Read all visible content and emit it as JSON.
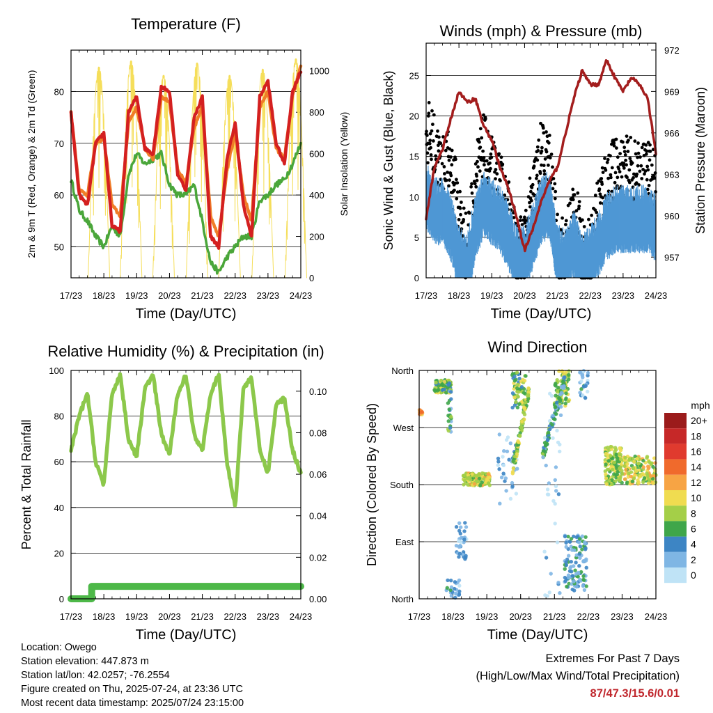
{
  "time_ticks": [
    "17/23",
    "18/23",
    "19/23",
    "20/23",
    "21/23",
    "22/23",
    "23/23",
    "24/23"
  ],
  "xlabel": "Time (Day/UTC)",
  "colors": {
    "t2m": "#d42020",
    "t9m": "#f07d28",
    "td": "#4aa63a",
    "solar": "#f5de5a",
    "wind": "#4f97d4",
    "gust": "#000000",
    "pressure": "#a31d1d",
    "rh": "#8cc84b",
    "precip": "#4db848"
  },
  "chart_data": [
    {
      "type": "line",
      "title": "Temperature (F)",
      "xlabel": "Time (Day/UTC)",
      "ylabel": "2m & 9m T (Red, Orange) & 2m Td (Green)",
      "y2label": "Solar Insolation (Yellow)",
      "ylim": [
        44,
        88
      ],
      "y2lim": [
        0,
        1100
      ],
      "yticks": [
        50,
        60,
        70,
        80
      ],
      "y2ticks": [
        0,
        200,
        400,
        600,
        800,
        1000
      ],
      "x_days": [
        0,
        0.25,
        0.5,
        0.75,
        1.0,
        1.25,
        1.5,
        1.75,
        2.0,
        2.25,
        2.5,
        2.75,
        3.0,
        3.25,
        3.5,
        3.75,
        4.0,
        4.25,
        4.5,
        4.75,
        5.0,
        5.25,
        5.5,
        5.75,
        6.0,
        6.25,
        6.5,
        6.75,
        7.0
      ],
      "series": [
        {
          "key": "t2m",
          "values": [
            76,
            60,
            58,
            70,
            72,
            54,
            53,
            76,
            79,
            69,
            68,
            81,
            80,
            64,
            61,
            75,
            79,
            52,
            50,
            67,
            74,
            58,
            52,
            79,
            82,
            70,
            66,
            80,
            84
          ]
        },
        {
          "key": "t9m",
          "values": [
            76,
            61,
            60,
            70,
            71,
            58,
            56,
            74,
            77,
            69,
            67,
            79,
            78,
            65,
            62,
            73,
            77,
            56,
            52,
            65,
            72,
            60,
            55,
            77,
            80,
            69,
            67,
            79,
            85
          ]
        },
        {
          "key": "td",
          "values": [
            63,
            57,
            55,
            52,
            50,
            54,
            52,
            64,
            68,
            66,
            67,
            68,
            62,
            60,
            60,
            62,
            55,
            47,
            45,
            48,
            50,
            52,
            52,
            59,
            60,
            62,
            63,
            66,
            70
          ]
        },
        {
          "key": "solar",
          "peaks": [
            {
              "day": 0.85,
              "value": 1020
            },
            {
              "day": 1.83,
              "value": 1050
            },
            {
              "day": 2.82,
              "value": 980
            },
            {
              "day": 3.84,
              "value": 1040
            },
            {
              "day": 4.83,
              "value": 980
            },
            {
              "day": 5.84,
              "value": 1010
            },
            {
              "day": 6.85,
              "value": 1060
            }
          ]
        }
      ]
    },
    {
      "type": "line",
      "title": "Winds (mph) & Pressure (mb)",
      "xlabel": "Time (Day/UTC)",
      "ylabel": "Sonic Wind & Gust (Blue, Black)",
      "y2label": "Station Pressure (Maroon)",
      "ylim": [
        0,
        29
      ],
      "y2lim": [
        955.5,
        972.5
      ],
      "yticks": [
        0,
        5,
        10,
        15,
        20,
        25
      ],
      "y2ticks": [
        957,
        960,
        963,
        966,
        969,
        972
      ],
      "x_days": [
        0,
        0.25,
        0.5,
        0.75,
        1.0,
        1.25,
        1.5,
        1.75,
        2.0,
        2.25,
        2.5,
        2.75,
        3.0,
        3.25,
        3.5,
        3.75,
        4.0,
        4.25,
        4.5,
        4.75,
        5.0,
        5.25,
        5.5,
        5.75,
        6.0,
        6.25,
        6.5,
        6.75,
        7.0
      ],
      "series": [
        {
          "key": "wind",
          "values": [
            10,
            8,
            8,
            6,
            2,
            1,
            6,
            9,
            8,
            7,
            5,
            2,
            2,
            5,
            8,
            9,
            2,
            2,
            4,
            1,
            2,
            4,
            6,
            7,
            7,
            7,
            7,
            7,
            6
          ]
        },
        {
          "key": "gust",
          "values": [
            18,
            16,
            13,
            14,
            8,
            3,
            12,
            16,
            13,
            11,
            8,
            3,
            4,
            10,
            15,
            14,
            4,
            3,
            9,
            3,
            3,
            9,
            12,
            13,
            13,
            13,
            12,
            13,
            11
          ]
        },
        {
          "key": "pressure",
          "values": [
            959.8,
            963.5,
            964.8,
            967,
            969,
            968.2,
            968.5,
            966.5,
            965.5,
            963.5,
            962,
            960,
            957.5,
            959,
            961,
            962.5,
            963.5,
            966,
            968.5,
            970.5,
            969.5,
            969.5,
            971.3,
            970,
            969,
            970,
            969.5,
            968.5,
            964.5
          ]
        }
      ]
    },
    {
      "type": "line",
      "title": "Relative Humidity (%) & Precipitation (in)",
      "xlabel": "Time (Day/UTC)",
      "ylabel": "Percent & Total Rainfall",
      "ylim": [
        0,
        100
      ],
      "y2lim": [
        0,
        0.11
      ],
      "yticks": [
        0,
        20,
        40,
        60,
        80,
        100
      ],
      "y2ticks": [
        0.0,
        0.02,
        0.04,
        0.06,
        0.08,
        0.1
      ],
      "y2ticklabels": [
        "0.00",
        "0.02",
        "0.04",
        "0.06",
        "0.08",
        "0.10"
      ],
      "x_days": [
        0,
        0.25,
        0.5,
        0.75,
        1.0,
        1.25,
        1.5,
        1.75,
        2.0,
        2.25,
        2.5,
        2.75,
        3.0,
        3.25,
        3.5,
        3.75,
        4.0,
        4.25,
        4.5,
        4.75,
        5.0,
        5.25,
        5.5,
        5.75,
        6.0,
        6.25,
        6.5,
        6.75,
        7.0
      ],
      "series": [
        {
          "key": "rh",
          "values": [
            65,
            80,
            90,
            60,
            50,
            90,
            98,
            70,
            62,
            92,
            98,
            72,
            63,
            90,
            98,
            72,
            65,
            90,
            98,
            60,
            40,
            92,
            97,
            65,
            55,
            85,
            88,
            65,
            55
          ]
        },
        {
          "key": "precip",
          "steps": [
            {
              "day": 0,
              "value": 0.0
            },
            {
              "day": 0.63,
              "value": 0.006
            }
          ]
        }
      ]
    },
    {
      "type": "scatter",
      "title": "Wind Direction",
      "xlabel": "Time (Day/UTC)",
      "ylabel": "Direction (Colored By Speed)",
      "yticks": [
        "North",
        "East",
        "South",
        "West",
        "North"
      ],
      "legend": {
        "title": "mph",
        "labels": [
          "20+",
          "18",
          "16",
          "14",
          "12",
          "10",
          "8",
          "6",
          "4",
          "2",
          "0"
        ],
        "colors": [
          "#9b1b1b",
          "#c62828",
          "#e03a2e",
          "#f06a2c",
          "#f7a444",
          "#f0dc50",
          "#a4cf48",
          "#3fa64a",
          "#3d85c4",
          "#7fb6e4",
          "#bfe3f6"
        ],
        "placement": "right"
      },
      "clusters": [
        {
          "day0": 0.0,
          "day1": 0.12,
          "dir0": 290,
          "dir1": 300,
          "n": 12,
          "speed": 13
        },
        {
          "day0": 0.45,
          "day1": 0.95,
          "dir0": 325,
          "dir1": 345,
          "n": 110,
          "speed": 7
        },
        {
          "day0": 0.85,
          "day1": 0.95,
          "dir0": 260,
          "dir1": 340,
          "n": 25,
          "speed": 5
        },
        {
          "day0": 1.3,
          "day1": 2.1,
          "dir0": 178,
          "dir1": 198,
          "n": 140,
          "speed": 9
        },
        {
          "day0": 1.1,
          "day1": 1.4,
          "dir0": 60,
          "dir1": 120,
          "n": 35,
          "speed": 2
        },
        {
          "day0": 0.8,
          "day1": 1.2,
          "dir0": 0,
          "dir1": 30,
          "n": 25,
          "speed": 3
        },
        {
          "day0": 2.75,
          "day1": 3.15,
          "dir0": 300,
          "dir1": 360,
          "n": 60,
          "speed": 7
        },
        {
          "day0": 4.0,
          "day1": 4.45,
          "dir0": 300,
          "dir1": 360,
          "n": 70,
          "speed": 8
        },
        {
          "day0": 4.3,
          "day1": 4.95,
          "dir0": 10,
          "dir1": 100,
          "n": 120,
          "speed": 4
        },
        {
          "day0": 4.75,
          "day1": 5.0,
          "dir0": 310,
          "dir1": 360,
          "n": 25,
          "speed": 3
        },
        {
          "day0": 5.5,
          "day1": 6.0,
          "dir0": 180,
          "dir1": 240,
          "n": 130,
          "speed": 8
        },
        {
          "day0": 6.0,
          "day1": 7.0,
          "dir0": 180,
          "dir1": 225,
          "n": 150,
          "speed": 9
        },
        {
          "day0": 2.3,
          "day1": 2.9,
          "dir0": 150,
          "dir1": 260,
          "n": 35,
          "speed": 2
        },
        {
          "day0": 3.7,
          "day1": 4.2,
          "dir0": 0,
          "dir1": 360,
          "n": 40,
          "speed": 1
        }
      ],
      "sweeps": [
        {
          "day0": 2.75,
          "day1": 3.25,
          "dir0": 200,
          "dir1": 330,
          "n": 90,
          "speed": 8
        },
        {
          "day0": 3.65,
          "day1": 4.3,
          "dir0": 225,
          "dir1": 345,
          "n": 100,
          "speed": 5
        }
      ]
    }
  ],
  "footer": {
    "location": "Location: Owego",
    "elevation": "Station elevation: 447.873 m",
    "latlon": "Station lat/lon: 42.0257; -76.2554",
    "created": "Figure created on Thu, 2025-07-24, at 23:36 UTC",
    "recent": "Most recent data timestamp: 2025/07/24 23:15:00",
    "extremes_title": "Extremes For Past 7 Days",
    "extremes_sub": "(High/Low/Max Wind/Total Precipitation)",
    "extremes_values": "87/47.3/15.6/0.01"
  }
}
